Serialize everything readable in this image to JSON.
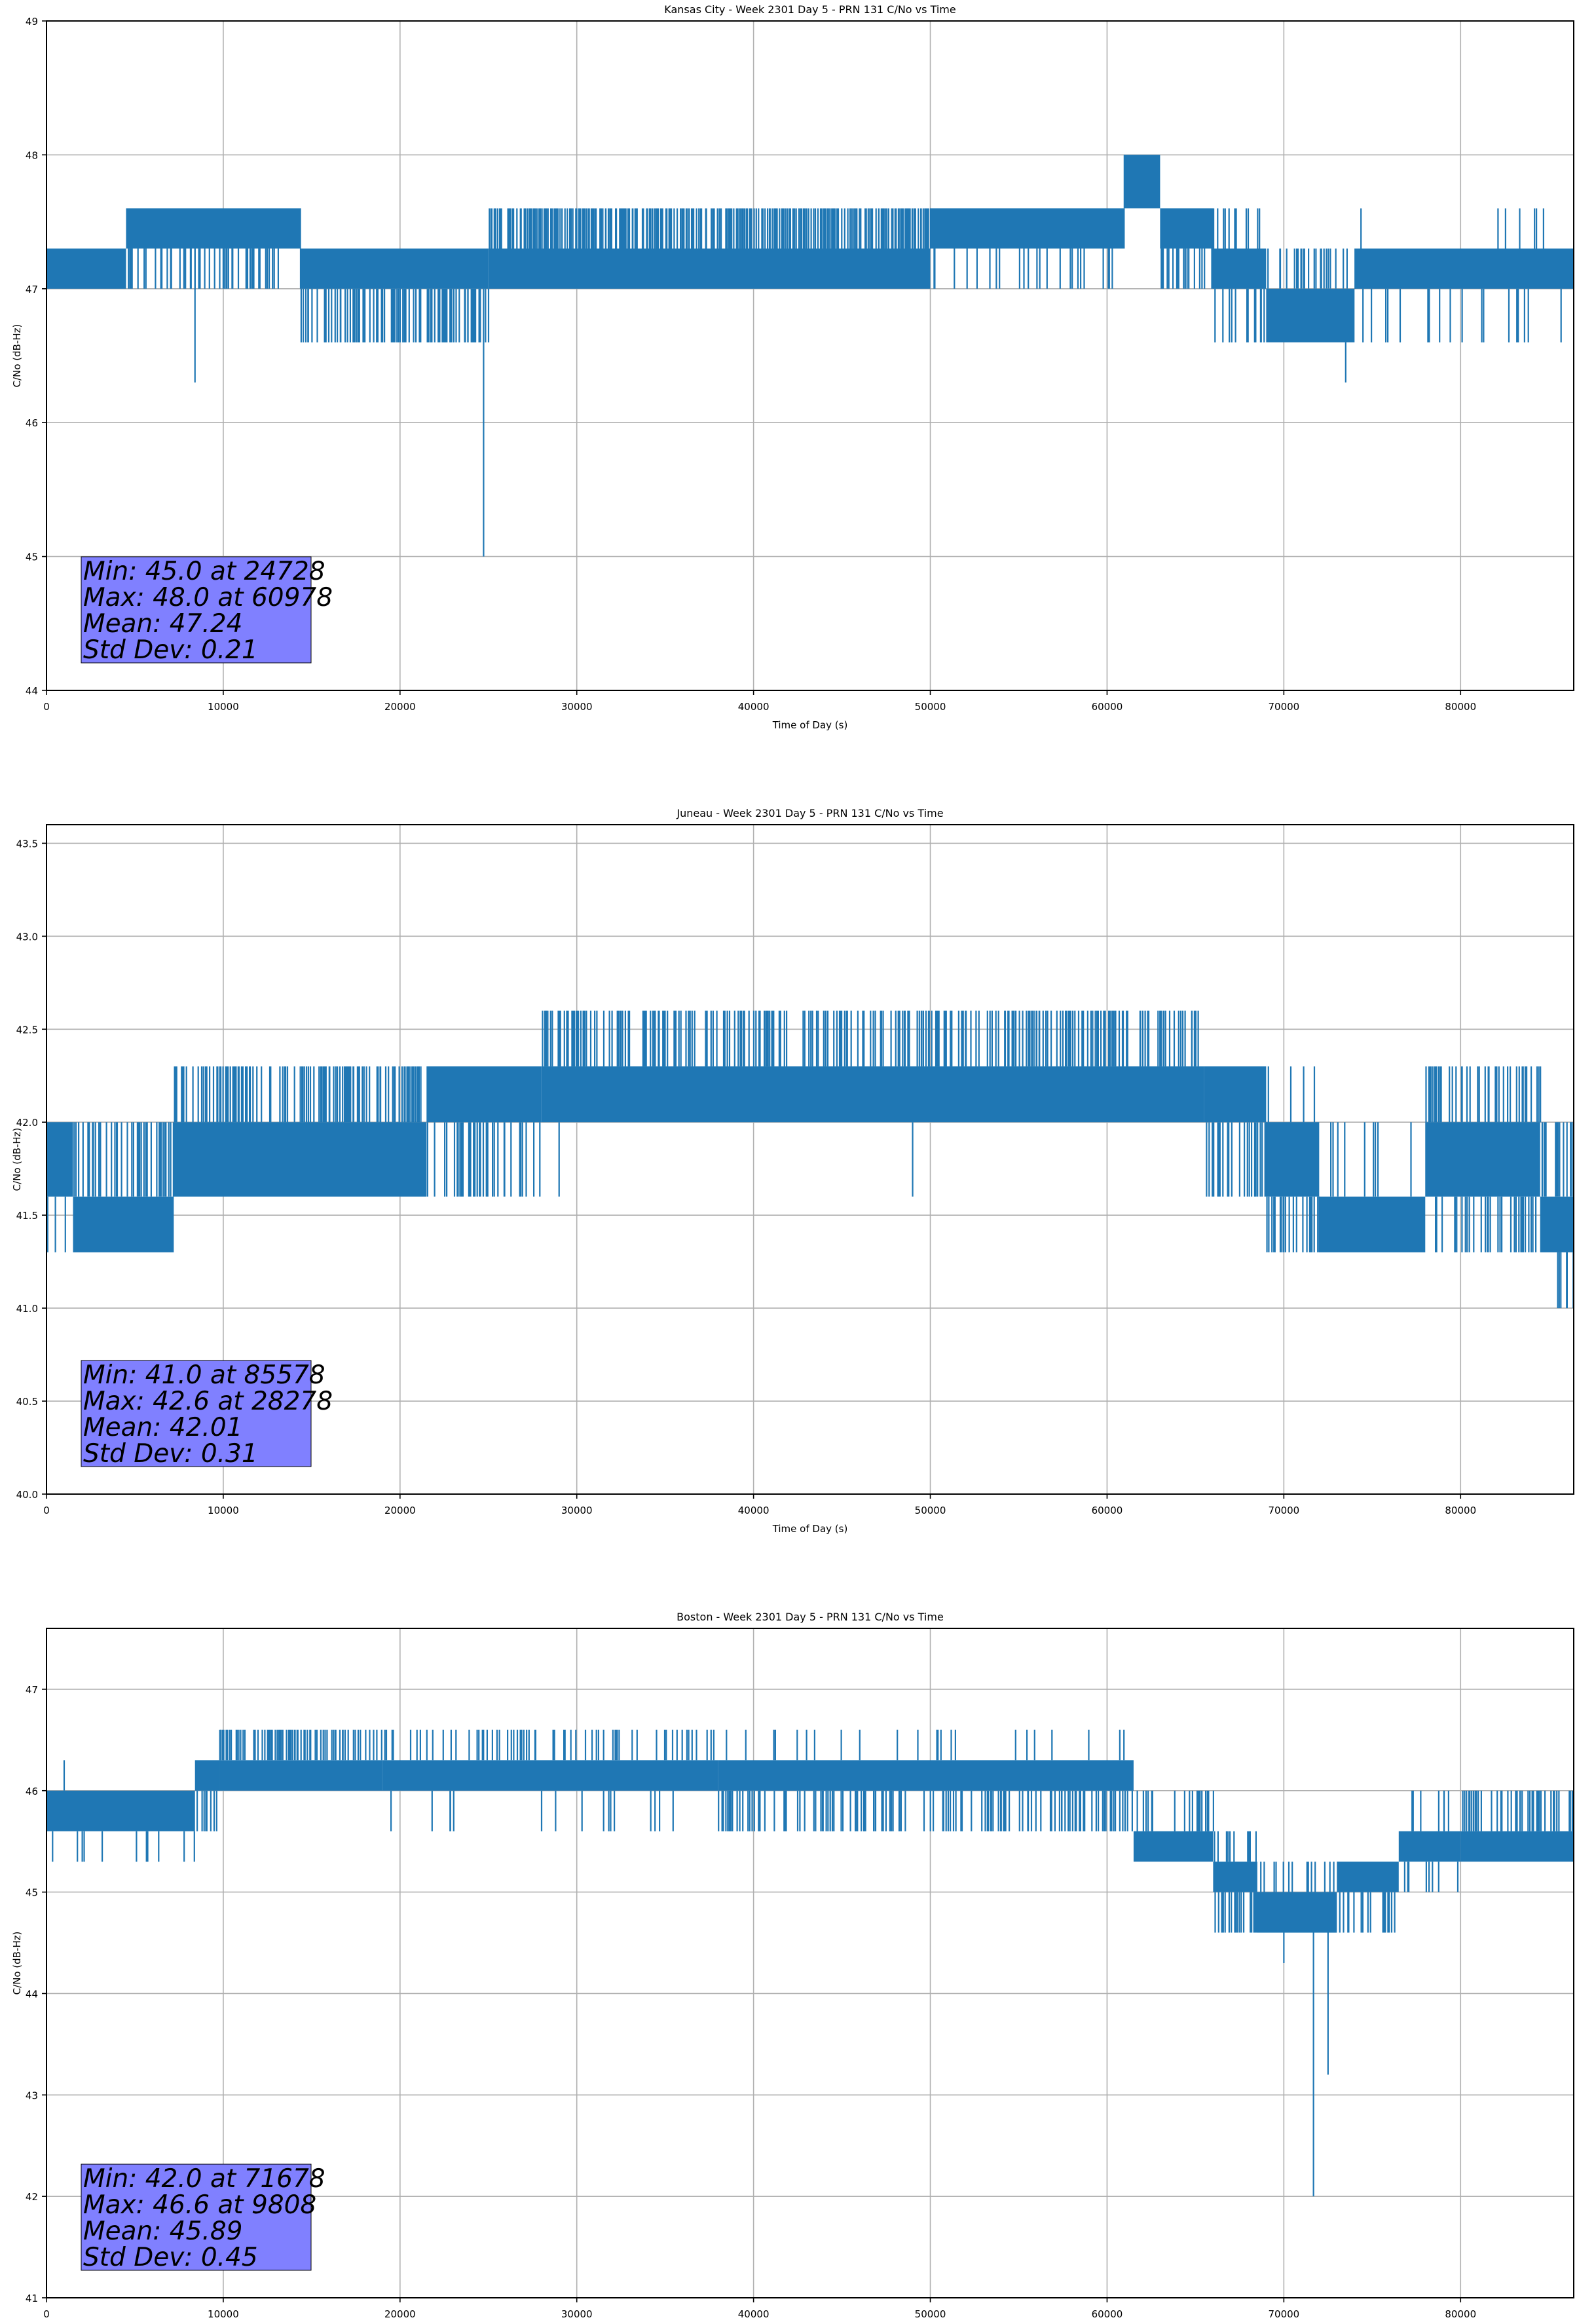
{
  "chart_data": [
    {
      "type": "line",
      "title": "Kansas City - Week 2301 Day 5 - PRN 131 C/No vs Time",
      "xlabel": "Time of Day (s)",
      "ylabel": "C/No (dB-Hz)",
      "xlim": [
        0,
        86400
      ],
      "ylim": [
        44,
        49
      ],
      "xticks": [
        0,
        10000,
        20000,
        30000,
        40000,
        50000,
        60000,
        70000,
        80000
      ],
      "yticks": [
        44,
        45,
        46,
        47,
        48,
        49
      ],
      "ytick_labels": [
        "44",
        "45",
        "46",
        "47",
        "48",
        "49"
      ],
      "grid": true,
      "line_color": "#1f77b4",
      "stats": {
        "lines": [
          "Min: 45.0 at 24728",
          "Max: 48.0 at 60978",
          "Mean: 47.24",
          "Std Dev: 0.21"
        ],
        "box_color": "#8080ff"
      },
      "bands": [
        {
          "x0": 0,
          "x1": 4500,
          "lo": 47.0,
          "hi": 47.3,
          "up": 47.3,
          "down": 47.0,
          "up_density": 0.3,
          "down_density": 0.3
        },
        {
          "x0": 4500,
          "x1": 14400,
          "lo": 47.3,
          "hi": 47.6,
          "up": 47.6,
          "down": 47.0,
          "up_density": 0.4,
          "down_density": 0.4
        },
        {
          "x0": 14400,
          "x1": 25000,
          "lo": 47.0,
          "hi": 47.3,
          "up": 47.3,
          "down": 46.6,
          "up_density": 0.05,
          "down_density": 0.5
        },
        {
          "x0": 25000,
          "x1": 50000,
          "lo": 47.0,
          "hi": 47.3,
          "up": 47.6,
          "down": 47.0,
          "up_density": 0.8,
          "down_density": 0.5
        },
        {
          "x0": 50000,
          "x1": 61000,
          "lo": 47.3,
          "hi": 47.6,
          "up": 47.6,
          "down": 47.0,
          "up_density": 0.5,
          "down_density": 0.2
        },
        {
          "x0": 61000,
          "x1": 63000,
          "lo": 47.6,
          "hi": 48.0,
          "up": 48.0,
          "down": 47.6,
          "up_density": 0.5,
          "down_density": 0.2
        },
        {
          "x0": 63000,
          "x1": 66000,
          "lo": 47.3,
          "hi": 47.6,
          "up": 47.6,
          "down": 47.0,
          "up_density": 0.4,
          "down_density": 0.4
        },
        {
          "x0": 66000,
          "x1": 69000,
          "lo": 47.0,
          "hi": 47.3,
          "up": 47.6,
          "down": 46.6,
          "up_density": 0.3,
          "down_density": 0.4
        },
        {
          "x0": 69000,
          "x1": 74000,
          "lo": 46.6,
          "hi": 47.0,
          "up": 47.3,
          "down": 46.6,
          "up_density": 0.4,
          "down_density": 0.3
        },
        {
          "x0": 74000,
          "x1": 86400,
          "lo": 47.0,
          "hi": 47.3,
          "up": 47.6,
          "down": 46.6,
          "up_density": 0.02,
          "down_density": 0.1
        }
      ],
      "spikes": [
        [
          8400,
          46.3
        ],
        [
          24728,
          45.0
        ],
        [
          73500,
          46.3
        ],
        [
          60978,
          48.0
        ]
      ]
    },
    {
      "type": "line",
      "title": "Juneau - Week 2301 Day 5 - PRN 131 C/No vs Time",
      "xlabel": "Time of Day (s)",
      "ylabel": "C/No (dB-Hz)",
      "xlim": [
        0,
        86400
      ],
      "ylim": [
        40.0,
        43.6
      ],
      "xticks": [
        0,
        10000,
        20000,
        30000,
        40000,
        50000,
        60000,
        70000,
        80000
      ],
      "yticks": [
        40.0,
        40.5,
        41.0,
        41.5,
        42.0,
        42.5,
        43.0,
        43.5
      ],
      "ytick_labels": [
        "40.0",
        "40.5",
        "41.0",
        "41.5",
        "42.0",
        "42.5",
        "43.0",
        "43.5"
      ],
      "grid": true,
      "line_color": "#1f77b4",
      "stats": {
        "lines": [
          "Min: 41.0 at 85578",
          "Max: 42.6 at 28278",
          "Mean: 42.01",
          "Std Dev: 0.31"
        ],
        "box_color": "#8080ff"
      },
      "bands": [
        {
          "x0": 0,
          "x1": 1500,
          "lo": 41.6,
          "hi": 42.0,
          "up": 42.0,
          "down": 41.3,
          "up_density": 0.3,
          "down_density": 0.3
        },
        {
          "x0": 1500,
          "x1": 7200,
          "lo": 41.3,
          "hi": 41.6,
          "up": 42.0,
          "down": 41.3,
          "up_density": 0.5,
          "down_density": 0.2
        },
        {
          "x0": 7200,
          "x1": 21500,
          "lo": 41.6,
          "hi": 42.0,
          "up": 42.3,
          "down": 41.6,
          "up_density": 0.6,
          "down_density": 0.3
        },
        {
          "x0": 21500,
          "x1": 28000,
          "lo": 42.0,
          "hi": 42.3,
          "up": 42.3,
          "down": 41.6,
          "up_density": 0.3,
          "down_density": 0.4
        },
        {
          "x0": 28000,
          "x1": 65500,
          "lo": 42.0,
          "hi": 42.3,
          "up": 42.6,
          "down": 42.0,
          "up_density": 0.5,
          "down_density": 0.25
        },
        {
          "x0": 65500,
          "x1": 69000,
          "lo": 42.0,
          "hi": 42.3,
          "up": 42.3,
          "down": 41.6,
          "up_density": 0.4,
          "down_density": 0.5
        },
        {
          "x0": 69000,
          "x1": 72000,
          "lo": 41.6,
          "hi": 42.0,
          "up": 42.3,
          "down": 41.3,
          "up_density": 0.2,
          "down_density": 0.5
        },
        {
          "x0": 72000,
          "x1": 78000,
          "lo": 41.3,
          "hi": 41.6,
          "up": 42.0,
          "down": 41.3,
          "up_density": 0.2,
          "down_density": 0.3
        },
        {
          "x0": 78000,
          "x1": 84500,
          "lo": 41.6,
          "hi": 42.0,
          "up": 42.3,
          "down": 41.3,
          "up_density": 0.4,
          "down_density": 0.4
        },
        {
          "x0": 84500,
          "x1": 86400,
          "lo": 41.3,
          "hi": 41.6,
          "up": 42.0,
          "down": 41.0,
          "up_density": 0.6,
          "down_density": 0.2
        }
      ],
      "spikes": [
        [
          28278,
          42.6
        ],
        [
          29000,
          41.6
        ],
        [
          49000,
          41.6
        ],
        [
          85578,
          41.0
        ],
        [
          86000,
          41.0
        ]
      ]
    },
    {
      "type": "line",
      "title": "Boston - Week 2301 Day 5 - PRN 131 C/No vs Time",
      "xlabel": "Time of Day (s)",
      "ylabel": "C/No (dB-Hz)",
      "xlim": [
        0,
        86400
      ],
      "ylim": [
        41,
        47.6
      ],
      "xticks": [
        0,
        10000,
        20000,
        30000,
        40000,
        50000,
        60000,
        70000,
        80000
      ],
      "yticks": [
        41,
        42,
        43,
        44,
        45,
        46,
        47
      ],
      "ytick_labels": [
        "41",
        "42",
        "43",
        "44",
        "45",
        "46",
        "47"
      ],
      "grid": true,
      "line_color": "#1f77b4",
      "stats": {
        "lines": [
          "Min: 42.0 at 71678",
          "Max: 46.6 at 9808",
          "Mean: 45.89",
          "Std Dev: 0.45"
        ],
        "box_color": "#8080ff"
      },
      "bands": [
        {
          "x0": 0,
          "x1": 8400,
          "lo": 45.6,
          "hi": 46.0,
          "up": 46.0,
          "down": 45.3,
          "up_density": 0.5,
          "down_density": 0.2
        },
        {
          "x0": 8400,
          "x1": 9800,
          "lo": 46.0,
          "hi": 46.3,
          "up": 46.3,
          "down": 45.6,
          "up_density": 0.4,
          "down_density": 0.3
        },
        {
          "x0": 9800,
          "x1": 19000,
          "lo": 46.0,
          "hi": 46.3,
          "up": 46.6,
          "down": 46.0,
          "up_density": 0.6,
          "down_density": 0.2
        },
        {
          "x0": 19000,
          "x1": 38000,
          "lo": 46.0,
          "hi": 46.3,
          "up": 46.6,
          "down": 45.6,
          "up_density": 0.25,
          "down_density": 0.1
        },
        {
          "x0": 38000,
          "x1": 61500,
          "lo": 46.0,
          "hi": 46.3,
          "up": 46.6,
          "down": 45.6,
          "up_density": 0.1,
          "down_density": 0.4
        },
        {
          "x0": 61500,
          "x1": 66000,
          "lo": 45.3,
          "hi": 45.6,
          "up": 46.0,
          "down": 45.3,
          "up_density": 0.3,
          "down_density": 0.2
        },
        {
          "x0": 66000,
          "x1": 68500,
          "lo": 45.0,
          "hi": 45.3,
          "up": 45.6,
          "down": 44.6,
          "up_density": 0.3,
          "down_density": 0.4
        },
        {
          "x0": 68500,
          "x1": 73000,
          "lo": 44.6,
          "hi": 45.0,
          "up": 45.3,
          "down": 44.6,
          "up_density": 0.3,
          "down_density": 0.2
        },
        {
          "x0": 73000,
          "x1": 76500,
          "lo": 45.0,
          "hi": 45.3,
          "up": 45.3,
          "down": 44.6,
          "up_density": 0.2,
          "down_density": 0.4
        },
        {
          "x0": 76500,
          "x1": 80000,
          "lo": 45.3,
          "hi": 45.6,
          "up": 46.0,
          "down": 45.0,
          "up_density": 0.2,
          "down_density": 0.1
        },
        {
          "x0": 80000,
          "x1": 86400,
          "lo": 45.3,
          "hi": 45.6,
          "up": 46.0,
          "down": 45.3,
          "up_density": 0.5,
          "down_density": 0.4
        }
      ],
      "spikes": [
        [
          9808,
          46.6
        ],
        [
          71678,
          42.0
        ],
        [
          1000,
          46.3
        ],
        [
          72500,
          43.2
        ],
        [
          70000,
          44.3
        ]
      ]
    }
  ]
}
